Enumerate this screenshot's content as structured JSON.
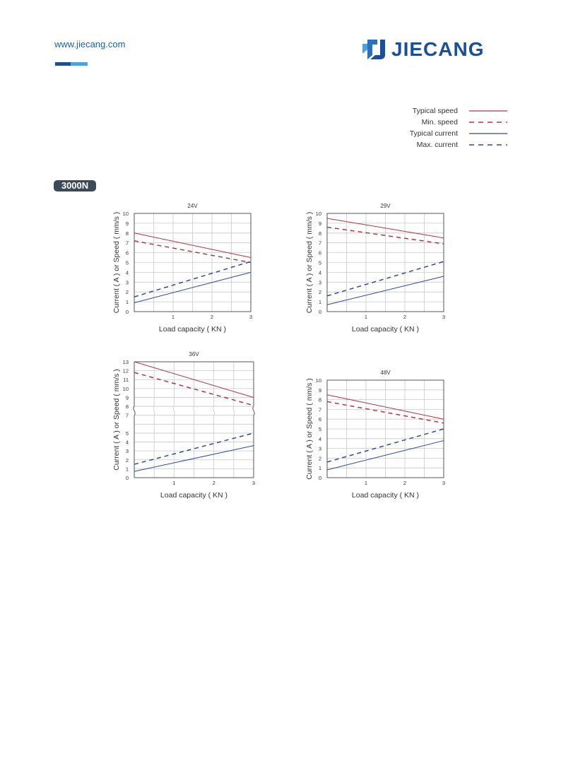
{
  "header": {
    "url": "www.jiecang.com",
    "logo_text": "JIECANG",
    "accent_colors": [
      "#1d4f8f",
      "#4aa3e0"
    ]
  },
  "legend": {
    "items": [
      {
        "label": "Typical speed",
        "color": "#b0363f",
        "style": "solid"
      },
      {
        "label": "Min. speed",
        "color": "#b0363f",
        "style": "dashed"
      },
      {
        "label": "Typical current",
        "color": "#2a4a9a",
        "style": "solid"
      },
      {
        "label": "Max. current",
        "color": "#2a4a9a",
        "style": "dashed"
      }
    ]
  },
  "badge": {
    "label": "3000N"
  },
  "chart_data": [
    {
      "type": "line",
      "title": "24V",
      "xlabel": "Load capacity ( KN )",
      "ylabel": "Current ( A ) or Speed ( mm/s )",
      "xlim": [
        0,
        3
      ],
      "ylim": [
        0,
        10
      ],
      "xticks": [
        "1",
        "2",
        "3"
      ],
      "yticks": [
        "0",
        "1",
        "2",
        "3",
        "4",
        "5",
        "6",
        "7",
        "8",
        "9",
        "10"
      ],
      "grid": true,
      "series": [
        {
          "name": "Typical speed",
          "x": [
            0,
            3
          ],
          "y": [
            8.0,
            5.5
          ]
        },
        {
          "name": "Min. speed",
          "x": [
            0,
            3
          ],
          "y": [
            7.2,
            5.0
          ]
        },
        {
          "name": "Typical current",
          "x": [
            0,
            3
          ],
          "y": [
            0.9,
            4.0
          ]
        },
        {
          "name": "Max. current",
          "x": [
            0,
            3
          ],
          "y": [
            1.5,
            5.1
          ]
        }
      ]
    },
    {
      "type": "line",
      "title": "29V",
      "xlabel": "Load capacity ( KN )",
      "ylabel": "Current ( A ) or Speed ( mm/s )",
      "xlim": [
        0,
        3
      ],
      "ylim": [
        0,
        10
      ],
      "xticks": [
        "1",
        "2",
        "3"
      ],
      "yticks": [
        "0",
        "1",
        "2",
        "3",
        "4",
        "5",
        "6",
        "7",
        "8",
        "9",
        "10"
      ],
      "grid": true,
      "series": [
        {
          "name": "Typical speed",
          "x": [
            0,
            3
          ],
          "y": [
            9.5,
            7.5
          ]
        },
        {
          "name": "Min. speed",
          "x": [
            0,
            3
          ],
          "y": [
            8.6,
            6.9
          ]
        },
        {
          "name": "Typical current",
          "x": [
            0,
            3
          ],
          "y": [
            0.7,
            3.6
          ]
        },
        {
          "name": "Max. current",
          "x": [
            0,
            3
          ],
          "y": [
            1.6,
            5.1
          ]
        }
      ]
    },
    {
      "type": "line",
      "title": "36V",
      "xlabel": "Load capacity ( KN )",
      "ylabel": "Current ( A ) or Speed ( mm/s )",
      "xlim": [
        0,
        3
      ],
      "ylim": [
        0,
        13
      ],
      "axis_break": [
        7,
        8
      ],
      "xticks": [
        "1",
        "2",
        "3"
      ],
      "yticks": [
        "0",
        "1",
        "2",
        "3",
        "4",
        "5",
        "7",
        "8",
        "9",
        "10",
        "11",
        "12",
        "13"
      ],
      "grid": true,
      "series": [
        {
          "name": "Typical speed",
          "x": [
            0,
            3
          ],
          "y": [
            13.0,
            9.0
          ]
        },
        {
          "name": "Min. speed",
          "x": [
            0,
            3
          ],
          "y": [
            11.8,
            8.1
          ]
        },
        {
          "name": "Typical current",
          "x": [
            0,
            3
          ],
          "y": [
            0.7,
            3.6
          ]
        },
        {
          "name": "Max. current",
          "x": [
            0,
            3
          ],
          "y": [
            1.5,
            5.0
          ]
        }
      ]
    },
    {
      "type": "line",
      "title": "48V",
      "xlabel": "Load capacity ( KN )",
      "ylabel": "Current ( A ) or Speed ( mm/s )",
      "xlim": [
        0,
        3
      ],
      "ylim": [
        0,
        10
      ],
      "xticks": [
        "1",
        "2",
        "3"
      ],
      "yticks": [
        "0",
        "1",
        "2",
        "3",
        "4",
        "5",
        "6",
        "7",
        "8",
        "9",
        "10"
      ],
      "grid": true,
      "series": [
        {
          "name": "Typical speed",
          "x": [
            0,
            3
          ],
          "y": [
            8.5,
            6.0
          ]
        },
        {
          "name": "Min. speed",
          "x": [
            0,
            3
          ],
          "y": [
            7.8,
            5.6
          ]
        },
        {
          "name": "Typical current",
          "x": [
            0,
            3
          ],
          "y": [
            0.8,
            3.8
          ]
        },
        {
          "name": "Max. current",
          "x": [
            0,
            3
          ],
          "y": [
            1.6,
            5.0
          ]
        }
      ]
    }
  ]
}
